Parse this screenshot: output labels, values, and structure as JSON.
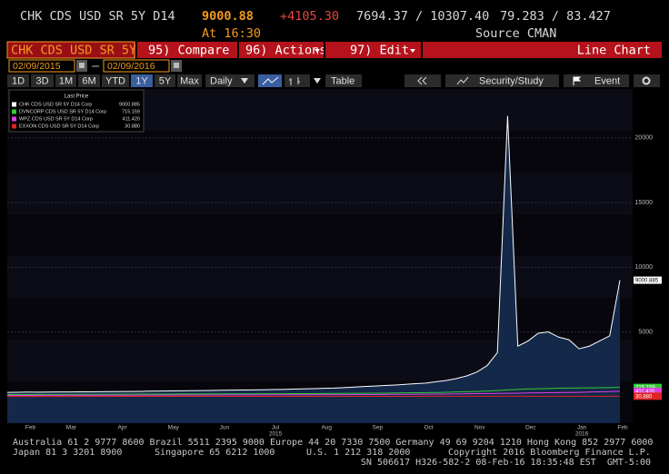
{
  "header": {
    "security": "CHK CDS USD SR 5Y D14",
    "last": "9000.88",
    "change": "+4105.30",
    "range": "7694.37 / 10307.40",
    "bid_ask": "79.283 / 83.427",
    "time": "At 16:30",
    "source": "Source CMAN"
  },
  "toolbar": {
    "ticker": "CHK CDS USD SR 5Y",
    "compare": "95) Compare",
    "actions": "96) Actions",
    "edit": "97) Edit",
    "chart_type": "Line Chart"
  },
  "dates": {
    "start": "02/09/2015",
    "end": "02/09/2016"
  },
  "periods": [
    "1D",
    "3D",
    "1M",
    "6M",
    "YTD",
    "1Y",
    "5Y",
    "Max"
  ],
  "frequency": "Daily",
  "table": "Table",
  "security_study": "Security/Study",
  "event": "Event",
  "chart_data": {
    "type": "line",
    "legend_title": "Last Price",
    "year_labels": [
      "2015",
      "2016"
    ],
    "categories": [
      null,
      null,
      "Feb",
      null,
      null,
      null,
      "Mar",
      null,
      null,
      null,
      null,
      "Apr",
      null,
      null,
      null,
      null,
      "May",
      null,
      null,
      null,
      null,
      "Jun",
      null,
      null,
      null,
      null,
      "Jul",
      null,
      null,
      null,
      null,
      "Aug",
      null,
      null,
      null,
      null,
      "Sep",
      null,
      null,
      null,
      null,
      "Oct",
      null,
      null,
      null,
      null,
      "Nov",
      null,
      null,
      null,
      null,
      "Dec",
      null,
      null,
      null,
      null,
      "Jan",
      null,
      null,
      null,
      "Feb"
    ],
    "ylim": [
      -2050,
      23780
    ],
    "yticks": [
      5000,
      10000,
      15000,
      20000
    ],
    "grid": true,
    "series": [
      {
        "name": "CHK CDS USD SR 5Y D14 Corp",
        "color": "#ffffff",
        "fill": "#14284a",
        "last_label": "9000.885",
        "values": [
          330,
          340,
          350,
          345,
          355,
          360,
          365,
          370,
          375,
          380,
          390,
          395,
          400,
          410,
          420,
          430,
          440,
          450,
          460,
          470,
          480,
          490,
          500,
          510,
          520,
          530,
          545,
          560,
          580,
          600,
          620,
          640,
          660,
          700,
          740,
          780,
          820,
          860,
          900,
          950,
          1000,
          1050,
          1150,
          1250,
          1400,
          1600,
          1900,
          2400,
          3400,
          21700,
          3900,
          4300,
          4900,
          5000,
          4600,
          4400,
          3700,
          3900,
          4300,
          4700,
          9000.885
        ]
      },
      {
        "name": "DVNCORP CDS USD SR 5Y D14 Corp",
        "color": "#33cc33",
        "last_label": "715.159",
        "values": [
          160,
          162,
          165,
          168,
          170,
          172,
          175,
          178,
          180,
          182,
          185,
          188,
          190,
          192,
          195,
          198,
          200,
          202,
          205,
          208,
          210,
          212,
          214,
          216,
          218,
          220,
          222,
          225,
          228,
          230,
          235,
          240,
          245,
          250,
          255,
          260,
          265,
          270,
          280,
          290,
          300,
          310,
          320,
          340,
          360,
          380,
          400,
          430,
          470,
          520,
          560,
          590,
          610,
          630,
          650,
          660,
          670,
          680,
          690,
          700,
          715.159
        ]
      },
      {
        "name": "WPZ CDS USD SR 5Y D14 Corp",
        "color": "#e040e0",
        "last_label": "411.420",
        "values": [
          90,
          92,
          94,
          95,
          96,
          98,
          100,
          102,
          104,
          106,
          108,
          110,
          112,
          114,
          116,
          118,
          120,
          122,
          124,
          126,
          128,
          130,
          132,
          134,
          136,
          138,
          140,
          142,
          144,
          146,
          148,
          150,
          152,
          155,
          158,
          160,
          165,
          170,
          175,
          180,
          185,
          190,
          195,
          200,
          210,
          220,
          230,
          240,
          250,
          260,
          270,
          280,
          290,
          300,
          310,
          320,
          330,
          350,
          370,
          390,
          411.42
        ]
      },
      {
        "name": "EXXON CDS USD SR 5Y D14 Corp",
        "color": "#e02424",
        "last_label": "30.880",
        "values": [
          15,
          15,
          15,
          15,
          16,
          16,
          16,
          16,
          17,
          17,
          17,
          17,
          18,
          18,
          18,
          18,
          19,
          19,
          19,
          19,
          20,
          20,
          20,
          20,
          21,
          21,
          21,
          21,
          22,
          22,
          22,
          22,
          23,
          23,
          23,
          24,
          24,
          24,
          25,
          25,
          25,
          26,
          26,
          26,
          27,
          27,
          27,
          28,
          28,
          28,
          29,
          29,
          29,
          29,
          30,
          30,
          30,
          30,
          30,
          30,
          30.88
        ]
      }
    ]
  },
  "footer": {
    "line1": "Australia 61 2 9777 8600 Brazil 5511 2395 9000 Europe 44 20 7330 7500 Germany 49 69 9204 1210 Hong Kong 852 2977 6000",
    "japan": "Japan 81 3 3201 8900",
    "singapore": "Singapore 65 6212 1000",
    "us": "U.S. 1 212 318 2000",
    "copyright": "Copyright 2016 Bloomberg Finance L.P.",
    "line3": "SN 506617 H326-582-2 08-Feb-16 18:35:48 EST  GMT-5:00"
  }
}
